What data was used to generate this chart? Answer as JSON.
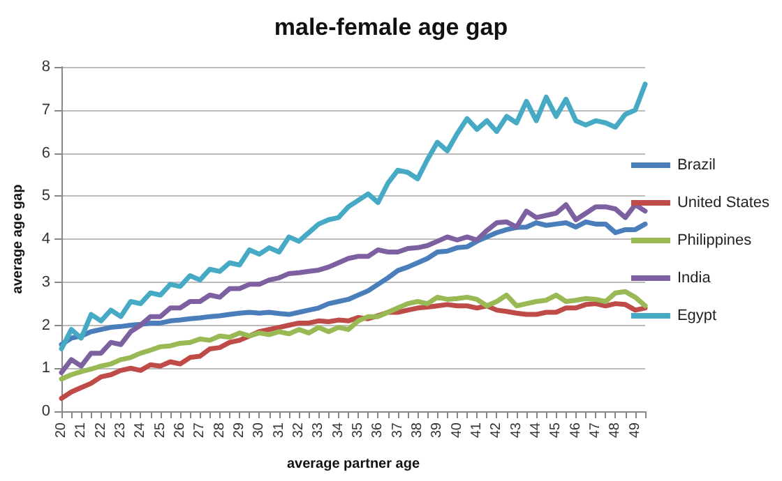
{
  "chart_data": {
    "type": "line",
    "title": "male-female age gap",
    "xlabel": "average partner age",
    "ylabel": "average age gap",
    "categories": [
      "20",
      null,
      "21",
      null,
      "22",
      null,
      "23",
      null,
      "24",
      null,
      "25",
      null,
      "26",
      null,
      "27",
      null,
      "28",
      null,
      "29",
      null,
      "30",
      null,
      "31",
      null,
      "32",
      null,
      "33",
      null,
      "34",
      null,
      "35",
      null,
      "36",
      null,
      "37",
      null,
      "38",
      null,
      "39",
      null,
      "40",
      null,
      "41",
      null,
      "42",
      null,
      "43",
      null,
      "44",
      null,
      "45",
      null,
      "46",
      null,
      "47",
      null,
      "48",
      null,
      "49",
      null
    ],
    "series": [
      {
        "name": "Brazil",
        "color": "#4a7ebb",
        "values": [
          1.55,
          1.7,
          1.75,
          1.85,
          1.9,
          1.95,
          1.97,
          2.0,
          2.02,
          2.05,
          2.05,
          2.1,
          2.12,
          2.15,
          2.17,
          2.2,
          2.22,
          2.25,
          2.28,
          2.3,
          2.28,
          2.3,
          2.27,
          2.25,
          2.3,
          2.35,
          2.4,
          2.5,
          2.55,
          2.6,
          2.7,
          2.8,
          2.95,
          3.1,
          3.27,
          3.35,
          3.45,
          3.55,
          3.7,
          3.72,
          3.8,
          3.82,
          3.95,
          4.05,
          4.15,
          4.22,
          4.27,
          4.28,
          4.38,
          4.32,
          4.35,
          4.38,
          4.28,
          4.4,
          4.35,
          4.35,
          4.15,
          4.22,
          4.22,
          4.35
        ]
      },
      {
        "name": "United States",
        "color": "#be4b48",
        "values": [
          0.3,
          0.45,
          0.55,
          0.65,
          0.8,
          0.85,
          0.95,
          1.0,
          0.95,
          1.08,
          1.05,
          1.15,
          1.1,
          1.25,
          1.28,
          1.45,
          1.48,
          1.6,
          1.65,
          1.75,
          1.85,
          1.9,
          1.95,
          2.0,
          2.05,
          2.05,
          2.1,
          2.08,
          2.12,
          2.1,
          2.18,
          2.15,
          2.22,
          2.3,
          2.3,
          2.35,
          2.4,
          2.42,
          2.45,
          2.48,
          2.45,
          2.45,
          2.4,
          2.45,
          2.35,
          2.32,
          2.28,
          2.25,
          2.25,
          2.3,
          2.3,
          2.4,
          2.4,
          2.48,
          2.5,
          2.45,
          2.5,
          2.48,
          2.35,
          2.4
        ]
      },
      {
        "name": "Philippines",
        "color": "#98b954",
        "values": [
          0.75,
          0.85,
          0.92,
          0.98,
          1.05,
          1.1,
          1.2,
          1.25,
          1.35,
          1.42,
          1.5,
          1.52,
          1.58,
          1.6,
          1.68,
          1.65,
          1.75,
          1.72,
          1.82,
          1.75,
          1.82,
          1.78,
          1.85,
          1.8,
          1.9,
          1.82,
          1.95,
          1.85,
          1.95,
          1.9,
          2.1,
          2.2,
          2.2,
          2.3,
          2.4,
          2.5,
          2.55,
          2.5,
          2.65,
          2.6,
          2.62,
          2.65,
          2.6,
          2.45,
          2.55,
          2.7,
          2.45,
          2.5,
          2.55,
          2.58,
          2.7,
          2.55,
          2.58,
          2.62,
          2.6,
          2.55,
          2.75,
          2.78,
          2.65,
          2.45
        ]
      },
      {
        "name": "India",
        "color": "#7d60a0",
        "values": [
          0.9,
          1.2,
          1.05,
          1.35,
          1.35,
          1.6,
          1.55,
          1.85,
          2.0,
          2.2,
          2.2,
          2.4,
          2.4,
          2.55,
          2.55,
          2.7,
          2.65,
          2.85,
          2.85,
          2.95,
          2.95,
          3.05,
          3.1,
          3.2,
          3.22,
          3.25,
          3.28,
          3.35,
          3.45,
          3.55,
          3.6,
          3.6,
          3.75,
          3.7,
          3.7,
          3.78,
          3.8,
          3.85,
          3.95,
          4.05,
          3.98,
          4.05,
          3.98,
          4.2,
          4.38,
          4.4,
          4.28,
          4.65,
          4.5,
          4.55,
          4.6,
          4.8,
          4.45,
          4.6,
          4.75,
          4.75,
          4.7,
          4.5,
          4.8,
          4.65
        ]
      },
      {
        "name": "Egypt",
        "color": "#46aac5",
        "values": [
          1.45,
          1.9,
          1.7,
          2.25,
          2.1,
          2.35,
          2.2,
          2.55,
          2.5,
          2.75,
          2.7,
          2.95,
          2.9,
          3.15,
          3.05,
          3.3,
          3.25,
          3.45,
          3.4,
          3.75,
          3.65,
          3.8,
          3.7,
          4.05,
          3.95,
          4.15,
          4.35,
          4.45,
          4.5,
          4.75,
          4.9,
          5.05,
          4.85,
          5.3,
          5.6,
          5.55,
          5.4,
          5.85,
          6.25,
          6.05,
          6.45,
          6.8,
          6.55,
          6.75,
          6.5,
          6.85,
          6.7,
          7.2,
          6.75,
          7.3,
          6.85,
          7.25,
          6.75,
          6.65,
          6.75,
          6.7,
          6.6,
          6.9,
          7.0,
          7.6
        ]
      }
    ],
    "ylim": [
      0,
      8
    ],
    "yticks": [
      0,
      1,
      2,
      3,
      4,
      5,
      6,
      7,
      8
    ],
    "grid": "y",
    "legend": "right",
    "marker": "none",
    "line_style": "solid"
  }
}
